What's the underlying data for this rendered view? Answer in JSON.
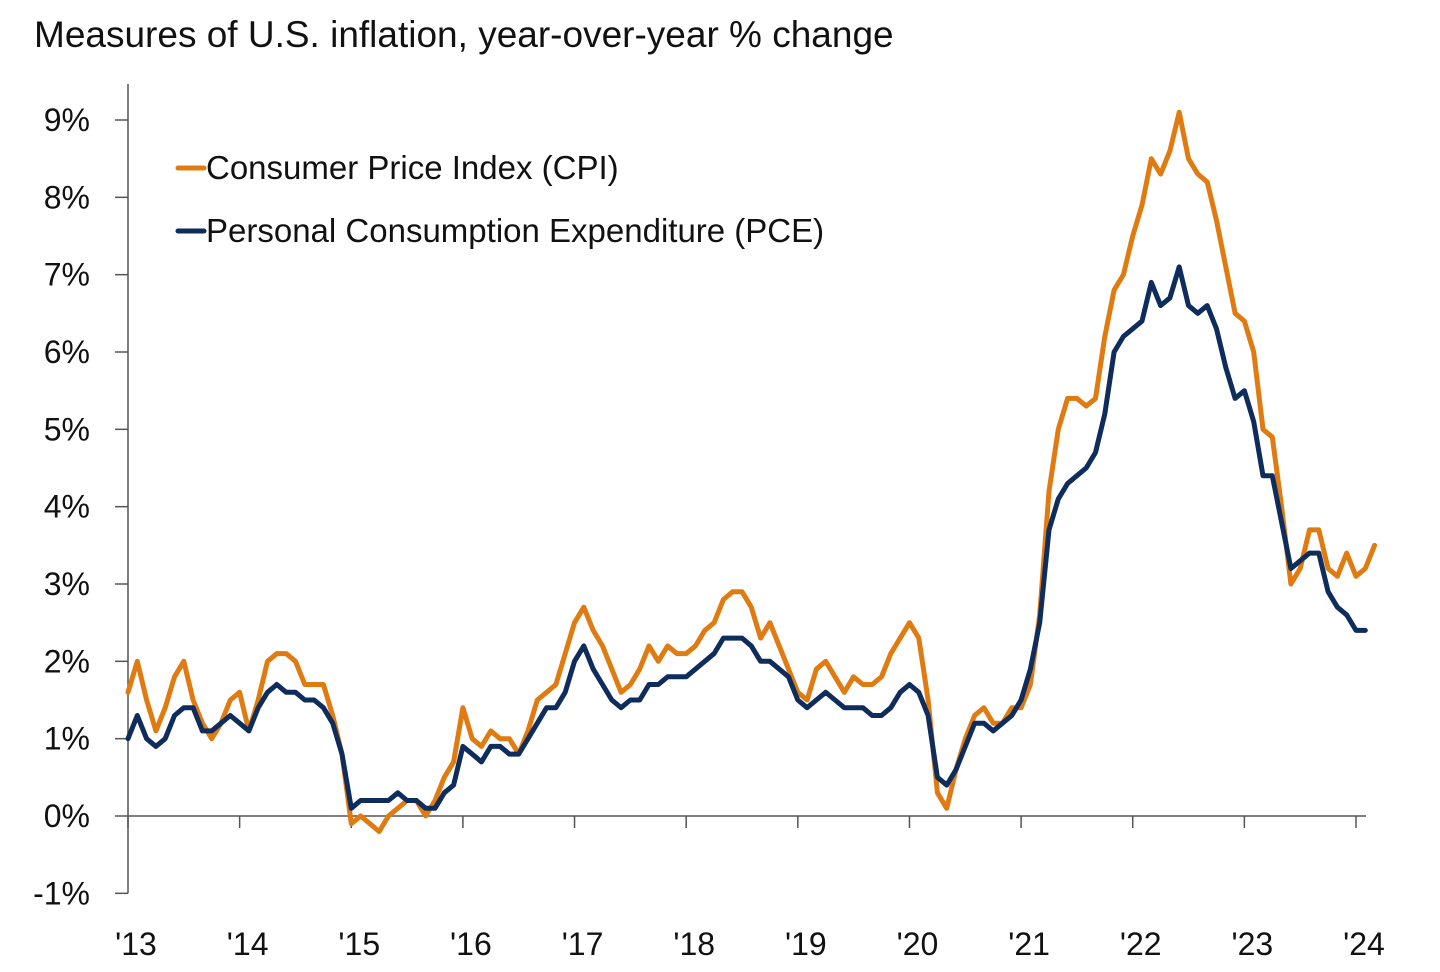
{
  "title": "Measures of U.S. inflation, year-over-year % change",
  "colors": {
    "cpi": "#E07B12",
    "pce": "#0E2C5C",
    "axis": "#555555"
  },
  "chart_data": {
    "type": "line",
    "title": "Measures of U.S. inflation, year-over-year % change",
    "xlabel": "",
    "ylabel": "",
    "x_start": "2013-01",
    "x_step": "month",
    "xlim": [
      "2013-01",
      "2024-01"
    ],
    "ylim": [
      -1,
      9
    ],
    "grid": false,
    "legend_position": "top-left",
    "x_ticks": [
      "'13",
      "'14",
      "'15",
      "'16",
      "'17",
      "'18",
      "'19",
      "'20",
      "'21",
      "'22",
      "'23",
      "'24"
    ],
    "y_ticks": [
      "-1%",
      "0%",
      "1%",
      "2%",
      "3%",
      "4%",
      "5%",
      "6%",
      "7%",
      "8%",
      "9%"
    ],
    "series": [
      {
        "name": "Consumer Price Index (CPI)",
        "color": "#E07B12",
        "values": [
          1.6,
          2.0,
          1.5,
          1.1,
          1.4,
          1.8,
          2.0,
          1.5,
          1.2,
          1.0,
          1.2,
          1.5,
          1.6,
          1.1,
          1.5,
          2.0,
          2.1,
          2.1,
          2.0,
          1.7,
          1.7,
          1.7,
          1.3,
          0.8,
          -0.1,
          0.0,
          -0.1,
          -0.2,
          0.0,
          0.1,
          0.2,
          0.2,
          0.0,
          0.2,
          0.5,
          0.7,
          1.4,
          1.0,
          0.9,
          1.1,
          1.0,
          1.0,
          0.8,
          1.1,
          1.5,
          1.6,
          1.7,
          2.1,
          2.5,
          2.7,
          2.4,
          2.2,
          1.9,
          1.6,
          1.7,
          1.9,
          2.2,
          2.0,
          2.2,
          2.1,
          2.1,
          2.2,
          2.4,
          2.5,
          2.8,
          2.9,
          2.9,
          2.7,
          2.3,
          2.5,
          2.2,
          1.9,
          1.6,
          1.5,
          1.9,
          2.0,
          1.8,
          1.6,
          1.8,
          1.7,
          1.7,
          1.8,
          2.1,
          2.3,
          2.5,
          2.3,
          1.5,
          0.3,
          0.1,
          0.6,
          1.0,
          1.3,
          1.4,
          1.2,
          1.2,
          1.4,
          1.4,
          1.7,
          2.6,
          4.2,
          5.0,
          5.4,
          5.4,
          5.3,
          5.4,
          6.2,
          6.8,
          7.0,
          7.5,
          7.9,
          8.5,
          8.3,
          8.6,
          9.1,
          8.5,
          8.3,
          8.2,
          7.7,
          7.1,
          6.5,
          6.4,
          6.0,
          5.0,
          4.9,
          4.0,
          3.0,
          3.2,
          3.7,
          3.7,
          3.2,
          3.1,
          3.4,
          3.1,
          3.2,
          3.5
        ]
      },
      {
        "name": "Personal Consumption Expenditure (PCE)",
        "color": "#0E2C5C",
        "values": [
          1.0,
          1.3,
          1.0,
          0.9,
          1.0,
          1.3,
          1.4,
          1.4,
          1.1,
          1.1,
          1.2,
          1.3,
          1.2,
          1.1,
          1.4,
          1.6,
          1.7,
          1.6,
          1.6,
          1.5,
          1.5,
          1.4,
          1.2,
          0.8,
          0.1,
          0.2,
          0.2,
          0.2,
          0.2,
          0.3,
          0.2,
          0.2,
          0.1,
          0.1,
          0.3,
          0.4,
          0.9,
          0.8,
          0.7,
          0.9,
          0.9,
          0.8,
          0.8,
          1.0,
          1.2,
          1.4,
          1.4,
          1.6,
          2.0,
          2.2,
          1.9,
          1.7,
          1.5,
          1.4,
          1.5,
          1.5,
          1.7,
          1.7,
          1.8,
          1.8,
          1.8,
          1.9,
          2.0,
          2.1,
          2.3,
          2.3,
          2.3,
          2.2,
          2.0,
          2.0,
          1.9,
          1.8,
          1.5,
          1.4,
          1.5,
          1.6,
          1.5,
          1.4,
          1.4,
          1.4,
          1.3,
          1.3,
          1.4,
          1.6,
          1.7,
          1.6,
          1.3,
          0.5,
          0.4,
          0.6,
          0.9,
          1.2,
          1.2,
          1.1,
          1.2,
          1.3,
          1.5,
          1.9,
          2.5,
          3.7,
          4.1,
          4.3,
          4.4,
          4.5,
          4.7,
          5.2,
          6.0,
          6.2,
          6.3,
          6.4,
          6.9,
          6.6,
          6.7,
          7.1,
          6.6,
          6.5,
          6.6,
          6.3,
          5.8,
          5.4,
          5.5,
          5.1,
          4.4,
          4.4,
          3.8,
          3.2,
          3.3,
          3.4,
          3.4,
          2.9,
          2.7,
          2.6,
          2.4,
          2.4
        ]
      }
    ]
  }
}
